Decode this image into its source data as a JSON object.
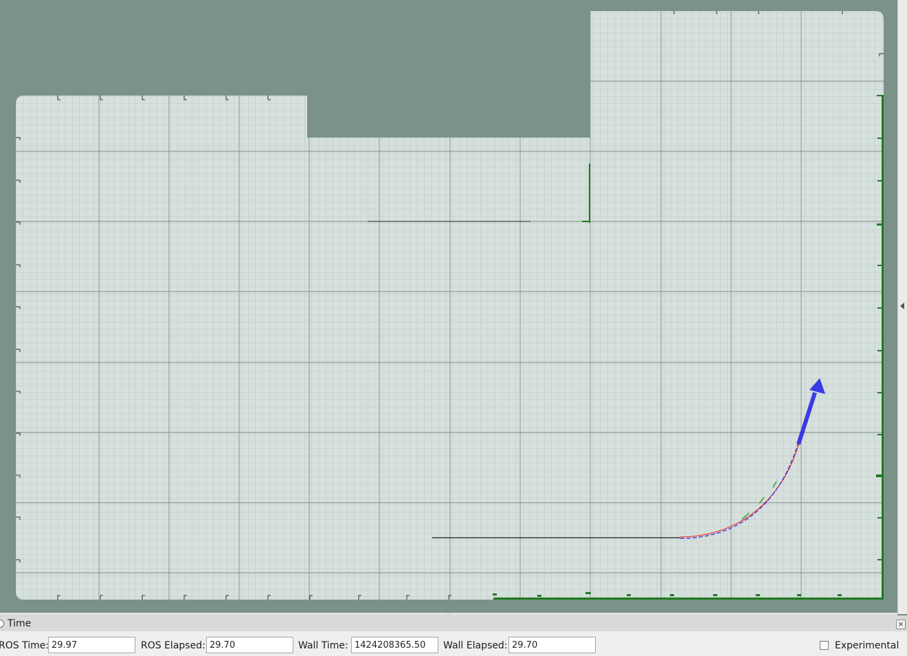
{
  "colors": {
    "background": "#7a9288",
    "map_free": "#d6e0dc",
    "grid_fine": "#a9b6b1",
    "grid_major": "#7f8e88",
    "laser_points": "#1f7a1f",
    "pose_arrow": "#3a3ae6",
    "path_red": "#e03030",
    "path_blue": "#2a2ae0",
    "path_green": "#20a020"
  },
  "icons": {
    "collapse": "chevron-left-icon",
    "close": "close-icon",
    "panel_radio": "radio-icon"
  },
  "time_panel": {
    "title": "Time",
    "ros_time_label": "ROS Time:",
    "ros_time_value": "29.97",
    "ros_elapsed_label": "ROS Elapsed:",
    "ros_elapsed_value": "29.70",
    "wall_time_label": "Wall Time:",
    "wall_time_value": "1424208365.50",
    "wall_elapsed_label": "Wall Elapsed:",
    "wall_elapsed_value": "29.70",
    "experimental_label": "Experimental",
    "experimental_checked": false
  }
}
